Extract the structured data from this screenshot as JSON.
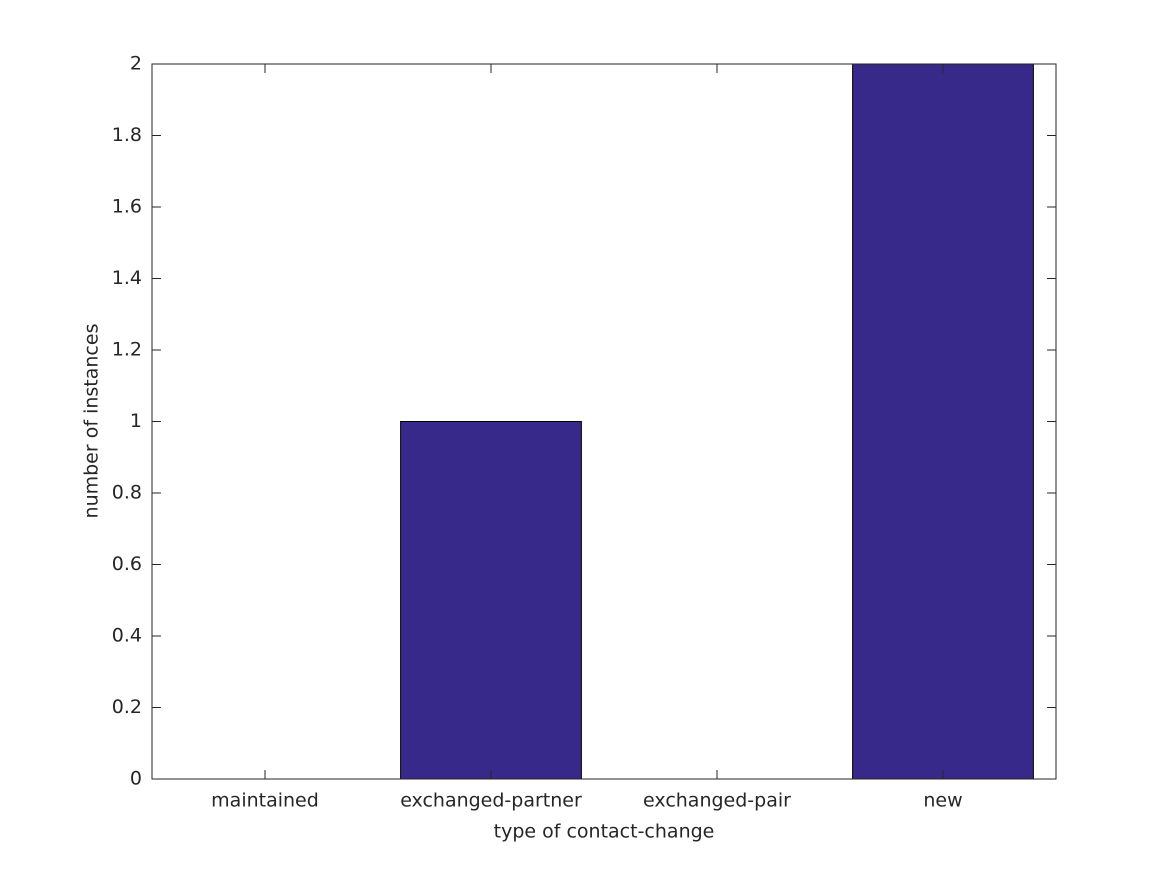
{
  "chart_data": {
    "type": "bar",
    "categories": [
      "maintained",
      "exchanged-partner",
      "exchanged-pair",
      "new"
    ],
    "values": [
      0,
      1,
      0,
      2
    ],
    "color": "#36298a",
    "ylim": [
      0,
      2
    ],
    "yticks": [
      0,
      0.2,
      0.4,
      0.6,
      0.8,
      1,
      1.2,
      1.4,
      1.6,
      1.8,
      2
    ],
    "xlabel": "type of contact-change",
    "ylabel": "number of instances",
    "grid": false
  }
}
